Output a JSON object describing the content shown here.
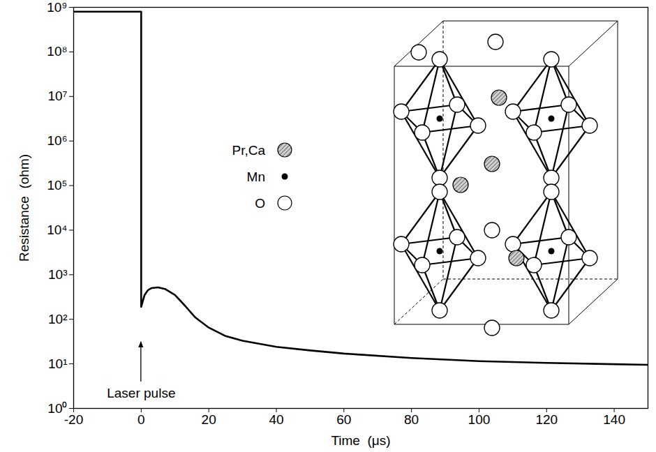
{
  "chart_data": {
    "type": "line",
    "x_label": "Time  (μs)",
    "y_label": "Resistance  (ohm)",
    "log": "y",
    "grid": false,
    "x": [
      -20,
      0,
      0,
      1,
      2,
      3,
      5,
      7,
      10,
      13,
      16,
      20,
      25,
      30,
      40,
      50,
      60,
      80,
      100,
      120,
      140,
      150
    ],
    "series": [
      {
        "name": "Resistance",
        "color": "#000000",
        "line_style": "solid",
        "values": [
          800000000,
          800000000,
          190,
          350,
          450,
          500,
          520,
          480,
          350,
          200,
          110,
          65,
          42,
          33,
          24,
          20,
          17,
          13.5,
          11.5,
          10.5,
          9.8,
          9.5
        ]
      }
    ],
    "xlim": [
      -20,
      150
    ],
    "xticks": [
      -20,
      0,
      20,
      40,
      60,
      80,
      100,
      120,
      140
    ],
    "ylim": [
      1,
      1000000000
    ],
    "yticks": [
      {
        "value": 1,
        "label": "10⁰"
      },
      {
        "value": 10,
        "label": "10¹"
      },
      {
        "value": 100,
        "label": "10²"
      },
      {
        "value": 1000,
        "label": "10³"
      },
      {
        "value": 10000,
        "label": "10⁴"
      },
      {
        "value": 100000,
        "label": "10⁵"
      },
      {
        "value": 1000000,
        "label": "10⁶"
      },
      {
        "value": 10000000,
        "label": "10⁷"
      },
      {
        "value": 100000000,
        "label": "10⁸"
      },
      {
        "value": 1000000000,
        "label": "10⁹"
      }
    ],
    "annotations": [
      {
        "text": "Laser pulse",
        "x": 0
      }
    ],
    "structure_legend": [
      "Pr,Ca",
      "Mn",
      "O"
    ]
  }
}
